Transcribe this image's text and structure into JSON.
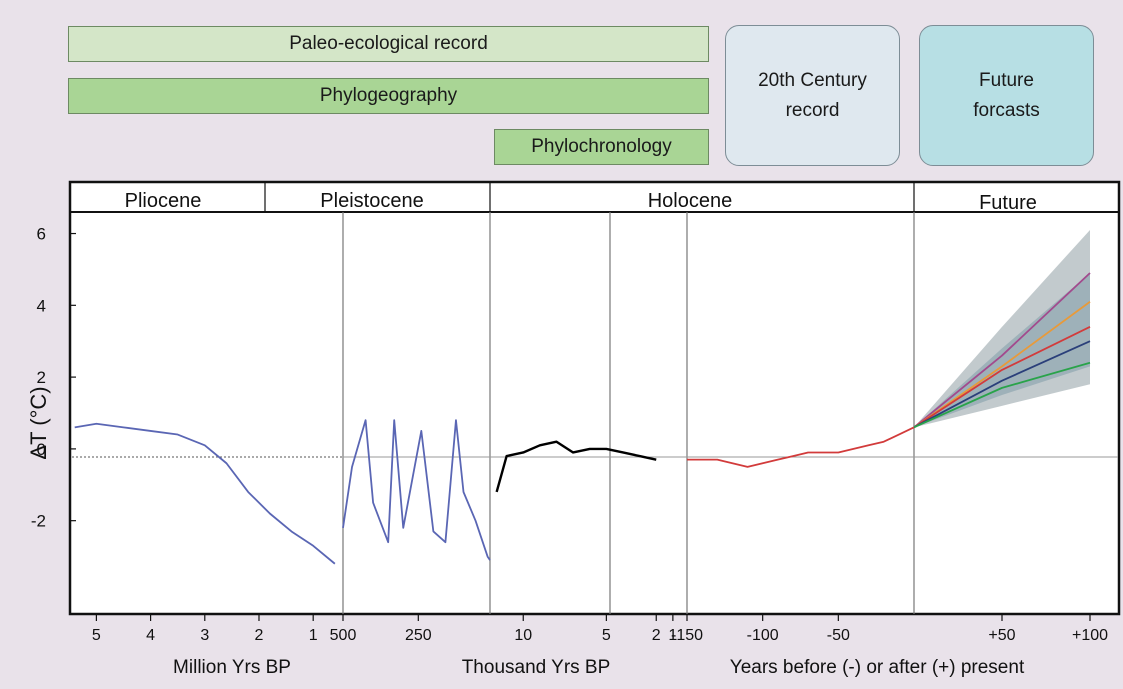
{
  "records": {
    "paleo": "Paleo-ecological record",
    "phylogeo": "Phylogeography",
    "phylochron": "Phylochronology",
    "century": "20th Century\nrecord",
    "future": "Future\nforcasts"
  },
  "colors": {
    "background": "#e9e2ea",
    "paleo_fill": "#d4e6c8",
    "phylo_fill": "#a9d595",
    "century_fill": "#dfe8ef",
    "future_fill": "#b7dfe4",
    "pliocene_line": "#5a66b4",
    "holocene_mean": "#000000",
    "recent_record": "#d23b3b",
    "envelope_outer": "#b7c1c4",
    "envelope_inner": "#8ea6b1"
  },
  "chart_data": {
    "type": "line",
    "ylabel": "ΔT (°C)",
    "ylim": [
      -4.6,
      6.6
    ],
    "y_ticks": [
      "6",
      "4",
      "2",
      "0",
      "-2"
    ],
    "y_tick_values": [
      6,
      4,
      2,
      0,
      -2
    ],
    "epochs": [
      "Pliocene",
      "Pleistocene",
      "Holocene",
      "Future"
    ],
    "panels": [
      {
        "name": "million_years",
        "unit_label": "Million Yrs BP",
        "x_ticks": [
          "5",
          "4",
          "3",
          "2",
          "1"
        ],
        "x_tick_values": [
          5,
          4,
          3,
          2,
          1
        ],
        "xlim": [
          5.45,
          0.45
        ],
        "series": [
          {
            "color": "#5a66b4",
            "values": [
              [
                5.4,
                0.6
              ],
              [
                5.0,
                0.7
              ],
              [
                4.5,
                0.6
              ],
              [
                4.0,
                0.5
              ],
              [
                3.5,
                0.4
              ],
              [
                3.0,
                0.1
              ],
              [
                2.6,
                -0.4
              ],
              [
                2.2,
                -1.2
              ],
              [
                1.8,
                -1.8
              ],
              [
                1.4,
                -2.3
              ],
              [
                1.0,
                -2.7
              ],
              [
                0.6,
                -3.2
              ]
            ]
          }
        ]
      },
      {
        "name": "thousand_years_long",
        "x_ticks": [
          "500",
          "250"
        ],
        "x_tick_values": [
          500,
          250
        ],
        "xlim": [
          500,
          12
        ],
        "series": [
          {
            "color": "#5a66b4",
            "values": [
              [
                500,
                -2.2
              ],
              [
                470,
                -0.5
              ],
              [
                425,
                0.8
              ],
              [
                400,
                -1.5
              ],
              [
                350,
                -2.6
              ],
              [
                330,
                0.8
              ],
              [
                300,
                -2.2
              ],
              [
                240,
                0.5
              ],
              [
                200,
                -2.3
              ],
              [
                160,
                -2.6
              ],
              [
                125,
                0.8
              ],
              [
                100,
                -1.2
              ],
              [
                60,
                -2.0
              ],
              [
                20,
                -3.0
              ],
              [
                12,
                -3.1
              ]
            ]
          }
        ]
      },
      {
        "name": "thousand_years_short",
        "unit_label": "Thousand Yrs BP",
        "x_ticks": [
          "10",
          "5",
          "2",
          "1"
        ],
        "x_tick_values": [
          10,
          5,
          2,
          1
        ],
        "xlim": [
          12,
          0.15
        ],
        "series": [
          {
            "name": "",
            "color": "#000000",
            "values": [
              [
                11.6,
                -1.2
              ],
              [
                11.0,
                -0.2
              ],
              [
                10.0,
                -0.1
              ],
              [
                9.0,
                0.1
              ],
              [
                8.0,
                0.2
              ],
              [
                7.0,
                -0.1
              ],
              [
                6.0,
                0.0
              ],
              [
                5.0,
                0.0
              ],
              [
                4.0,
                -0.1
              ],
              [
                3.0,
                -0.2
              ],
              [
                2.0,
                -0.3
              ]
            ]
          }
        ]
      },
      {
        "name": "years",
        "unit_label": "Years before (-) or after (+) present",
        "x_ticks": [
          "-150",
          "-100",
          "-50",
          "+50",
          "+100"
        ],
        "x_tick_values": [
          -150,
          -100,
          -50,
          50,
          100
        ],
        "xlim": [
          -150,
          0
        ],
        "series": [
          {
            "name": "",
            "color": "#d23b3b",
            "values": [
              [
                -150,
                -0.3
              ],
              [
                -130,
                -0.3
              ],
              [
                -120,
                -0.4
              ],
              [
                -110,
                -0.5
              ],
              [
                -100,
                -0.4
              ],
              [
                -90,
                -0.3
              ],
              [
                -80,
                -0.2
              ],
              [
                -70,
                -0.1
              ],
              [
                -60,
                -0.1
              ],
              [
                -50,
                -0.1
              ],
              [
                -40,
                0.0
              ],
              [
                -30,
                0.1
              ],
              [
                -20,
                0.2
              ],
              [
                -10,
                0.4
              ],
              [
                0,
                0.6
              ]
            ]
          }
        ]
      },
      {
        "name": "future",
        "xlim": [
          0,
          100
        ],
        "envelope_outer": [
          [
            0,
            0.6,
            0.6
          ],
          [
            50,
            3.4,
            1.2
          ],
          [
            100,
            6.1,
            1.8
          ]
        ],
        "envelope_inner": [
          [
            0,
            0.6,
            0.6
          ],
          [
            50,
            2.8,
            1.5
          ],
          [
            100,
            4.9,
            2.3
          ]
        ],
        "series": [
          {
            "name": "",
            "color": "#a24a8d",
            "values": [
              [
                0,
                0.6
              ],
              [
                50,
                2.6
              ],
              [
                100,
                4.9
              ]
            ]
          },
          {
            "name": "",
            "color": "#e89a3a",
            "values": [
              [
                0,
                0.6
              ],
              [
                50,
                2.3
              ],
              [
                100,
                4.1
              ]
            ]
          },
          {
            "name": "",
            "color": "#d23b3b",
            "values": [
              [
                0,
                0.6
              ],
              [
                50,
                2.2
              ],
              [
                100,
                3.4
              ]
            ]
          },
          {
            "name": "",
            "color": "#2a3f7a",
            "values": [
              [
                0,
                0.6
              ],
              [
                50,
                1.9
              ],
              [
                100,
                3.0
              ]
            ]
          },
          {
            "name": "",
            "color": "#29a34a",
            "values": [
              [
                0,
                0.6
              ],
              [
                50,
                1.7
              ],
              [
                100,
                2.4
              ]
            ]
          }
        ]
      }
    ]
  }
}
